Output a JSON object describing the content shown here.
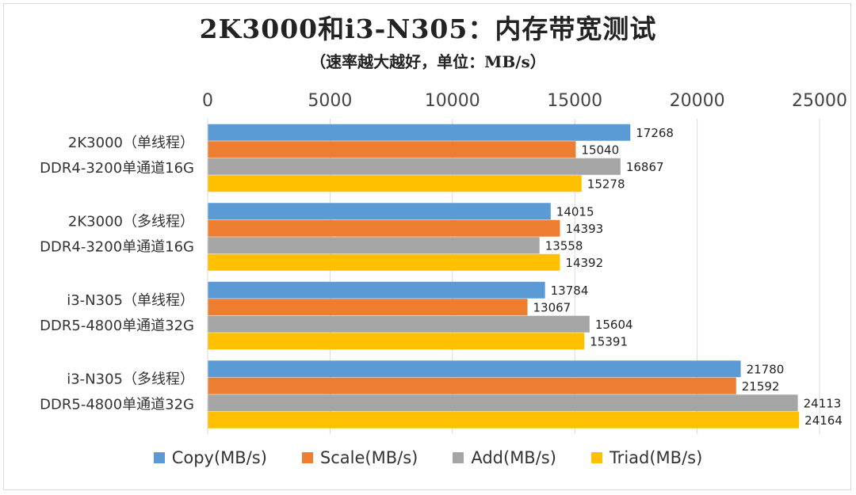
{
  "title": "2K3000和i3-N305：内存带宽测试",
  "subtitle": "（速率越大越好，单位：MB/s）",
  "chart_data": {
    "type": "bar",
    "orientation": "horizontal",
    "categories": [
      [
        "2K3000（单线程）",
        "DDR4-3200单通道16G"
      ],
      [
        "2K3000（多线程）",
        "DDR4-3200单通道16G"
      ],
      [
        "i3-N305（单线程）",
        "DDR5-4800单通道32G"
      ],
      [
        "i3-N305（多线程）",
        "DDR5-4800单通道32G"
      ]
    ],
    "series": [
      {
        "name": "Copy(MB/s)",
        "color": "#5b9bd5",
        "values": [
          17268,
          14015,
          13784,
          21780
        ]
      },
      {
        "name": "Scale(MB/s)",
        "color": "#ed7d31",
        "values": [
          15040,
          14393,
          13067,
          21592
        ]
      },
      {
        "name": "Add(MB/s)",
        "color": "#a5a5a5",
        "values": [
          16867,
          13558,
          15604,
          24113
        ]
      },
      {
        "name": "Triad(MB/s)",
        "color": "#ffc000",
        "values": [
          15278,
          14392,
          15391,
          24164
        ]
      }
    ],
    "xlim": [
      0,
      25000
    ],
    "xticks": [
      "0",
      "5000",
      "10000",
      "15000",
      "20000",
      "25000"
    ],
    "axis_position": "top",
    "grid": true,
    "legend_position": "bottom",
    "data_labels": true
  }
}
